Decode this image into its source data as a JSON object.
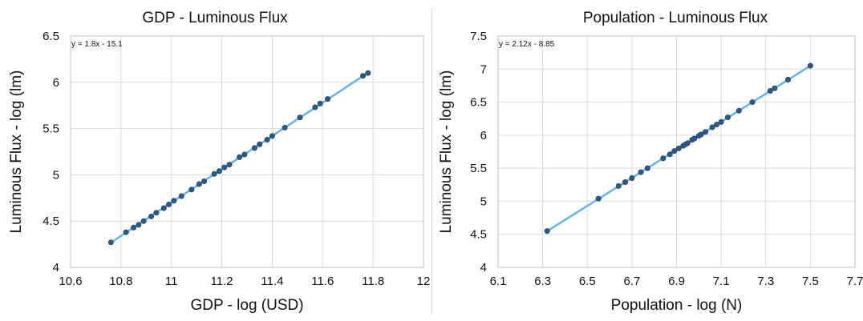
{
  "chart_data": [
    {
      "type": "scatter",
      "title": "GDP - Luminous Flux",
      "xlabel": "GDP - log (USD)",
      "ylabel": "Luminous Flux - log (lm)",
      "equation": "y = 1.8x - 15.1",
      "xlim": [
        10.6,
        12
      ],
      "ylim": [
        4,
        6.5
      ],
      "xticks": [
        "10.6",
        "10.8",
        "11",
        "11.2",
        "11.4",
        "11.6",
        "11.8",
        "12"
      ],
      "yticks": [
        "4",
        "4.5",
        "5",
        "5.5",
        "6",
        "6.5"
      ],
      "grid": true,
      "trendline": {
        "slope": 1.8,
        "intercept": -15.1,
        "x": [
          10.76,
          11.78
        ],
        "color": "#66b3e6"
      },
      "point_color": "#2d5a85",
      "points": [
        {
          "x": 10.76,
          "y": 4.27
        },
        {
          "x": 10.82,
          "y": 4.38
        },
        {
          "x": 10.85,
          "y": 4.43
        },
        {
          "x": 10.87,
          "y": 4.46
        },
        {
          "x": 10.89,
          "y": 4.5
        },
        {
          "x": 10.92,
          "y": 4.55
        },
        {
          "x": 10.94,
          "y": 4.59
        },
        {
          "x": 10.97,
          "y": 4.64
        },
        {
          "x": 10.99,
          "y": 4.68
        },
        {
          "x": 11.01,
          "y": 4.72
        },
        {
          "x": 11.04,
          "y": 4.77
        },
        {
          "x": 11.08,
          "y": 4.84
        },
        {
          "x": 11.11,
          "y": 4.9
        },
        {
          "x": 11.13,
          "y": 4.93
        },
        {
          "x": 11.17,
          "y": 5.01
        },
        {
          "x": 11.19,
          "y": 5.04
        },
        {
          "x": 11.21,
          "y": 5.08
        },
        {
          "x": 11.23,
          "y": 5.11
        },
        {
          "x": 11.27,
          "y": 5.19
        },
        {
          "x": 11.29,
          "y": 5.22
        },
        {
          "x": 11.33,
          "y": 5.29
        },
        {
          "x": 11.35,
          "y": 5.33
        },
        {
          "x": 11.38,
          "y": 5.38
        },
        {
          "x": 11.4,
          "y": 5.42
        },
        {
          "x": 11.45,
          "y": 5.51
        },
        {
          "x": 11.51,
          "y": 5.62
        },
        {
          "x": 11.57,
          "y": 5.73
        },
        {
          "x": 11.59,
          "y": 5.77
        },
        {
          "x": 11.62,
          "y": 5.82
        },
        {
          "x": 11.76,
          "y": 6.07
        },
        {
          "x": 11.78,
          "y": 6.1
        }
      ]
    },
    {
      "type": "scatter",
      "title": "Population - Luminous Flux",
      "xlabel": "Population - log (N)",
      "ylabel": "Luminous Flux - log (lm)",
      "equation": "y = 2.12x - 8.85",
      "xlim": [
        6.1,
        7.7
      ],
      "ylim": [
        4,
        7.5
      ],
      "xticks": [
        "6.1",
        "6.3",
        "6.5",
        "6.7",
        "6.9",
        "7.1",
        "7.3",
        "7.5",
        "7.7"
      ],
      "yticks": [
        "4",
        "4.5",
        "5",
        "5.5",
        "6",
        "6.5",
        "7",
        "7.5"
      ],
      "grid": true,
      "trendline": {
        "slope": 2.12,
        "intercept": -8.85,
        "x": [
          6.32,
          7.5
        ],
        "color": "#66b3e6"
      },
      "point_color": "#2d5a85",
      "points": [
        {
          "x": 6.32,
          "y": 4.55
        },
        {
          "x": 6.55,
          "y": 5.04
        },
        {
          "x": 6.64,
          "y": 5.23
        },
        {
          "x": 6.67,
          "y": 5.29
        },
        {
          "x": 6.7,
          "y": 5.35
        },
        {
          "x": 6.74,
          "y": 5.44
        },
        {
          "x": 6.77,
          "y": 5.5
        },
        {
          "x": 6.84,
          "y": 5.65
        },
        {
          "x": 6.87,
          "y": 5.71
        },
        {
          "x": 6.89,
          "y": 5.76
        },
        {
          "x": 6.91,
          "y": 5.8
        },
        {
          "x": 6.93,
          "y": 5.84
        },
        {
          "x": 6.94,
          "y": 5.86
        },
        {
          "x": 6.95,
          "y": 5.88
        },
        {
          "x": 6.97,
          "y": 5.93
        },
        {
          "x": 6.98,
          "y": 5.95
        },
        {
          "x": 7.0,
          "y": 5.99
        },
        {
          "x": 7.01,
          "y": 6.01
        },
        {
          "x": 7.03,
          "y": 6.05
        },
        {
          "x": 7.06,
          "y": 6.12
        },
        {
          "x": 7.08,
          "y": 6.16
        },
        {
          "x": 7.1,
          "y": 6.2
        },
        {
          "x": 7.13,
          "y": 6.27
        },
        {
          "x": 7.18,
          "y": 6.37
        },
        {
          "x": 7.24,
          "y": 6.5
        },
        {
          "x": 7.32,
          "y": 6.67
        },
        {
          "x": 7.34,
          "y": 6.71
        },
        {
          "x": 7.4,
          "y": 6.84
        },
        {
          "x": 7.5,
          "y": 7.05
        }
      ]
    }
  ]
}
